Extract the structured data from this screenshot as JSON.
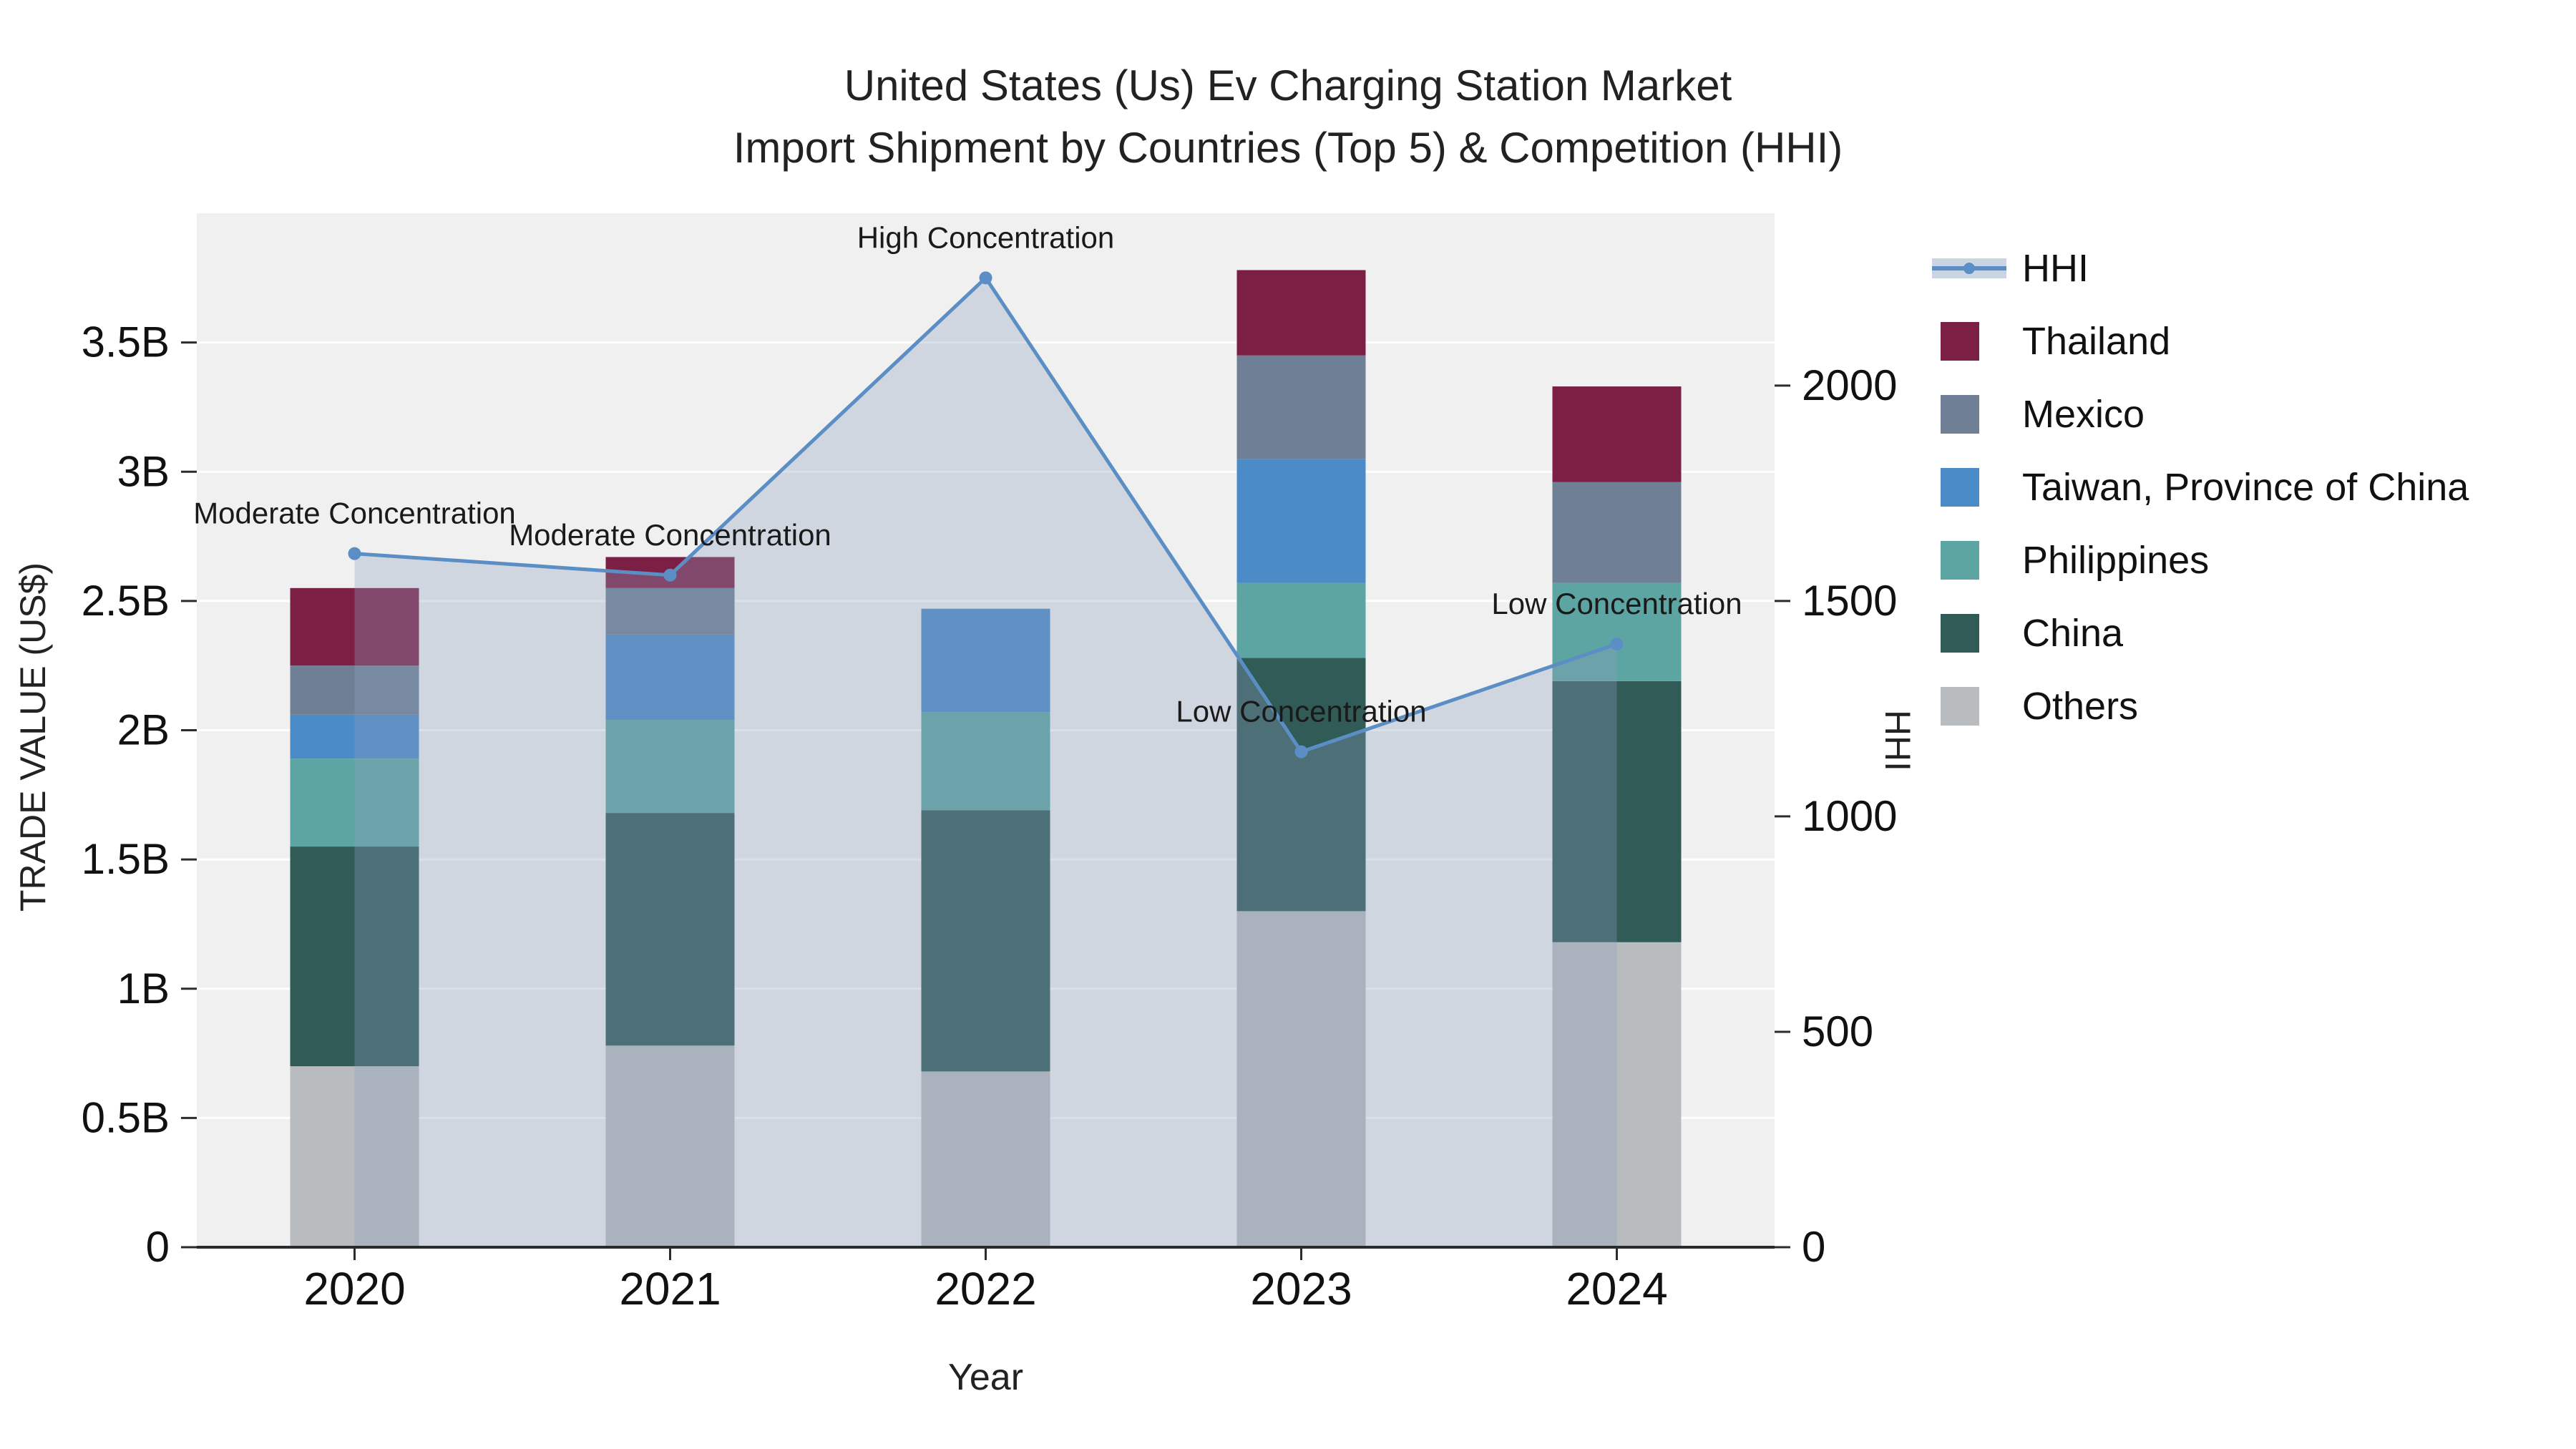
{
  "title": {
    "line1": "United States (Us) Ev Charging Station Market",
    "line2": "Import Shipment by Countries (Top 5) & Competition (HHI)"
  },
  "axis_titles": {
    "left": "TRADE VALUE (US$)",
    "right": "HHI",
    "bottom": "Year"
  },
  "chart_data": {
    "type": "bar",
    "subtype": "stacked-bars-with-line-overlay",
    "categories": [
      "2020",
      "2021",
      "2022",
      "2023",
      "2024"
    ],
    "bar_unit": "billion US$",
    "series": [
      {
        "name": "Others",
        "color": "#b9bcbf",
        "values": [
          0.7,
          0.78,
          0.68,
          1.3,
          1.18
        ]
      },
      {
        "name": "China",
        "color": "#305b57",
        "values": [
          0.85,
          0.9,
          1.01,
          0.98,
          1.01
        ]
      },
      {
        "name": "Philippines",
        "color": "#5da5a3",
        "values": [
          0.34,
          0.36,
          0.38,
          0.29,
          0.38
        ]
      },
      {
        "name": "Taiwan, Province of China",
        "color": "#4b8bc8",
        "values": [
          0.17,
          0.33,
          0.4,
          0.48,
          0.0
        ]
      },
      {
        "name": "Mexico",
        "color": "#6f7f96",
        "values": [
          0.19,
          0.18,
          0.0,
          0.4,
          0.39
        ]
      },
      {
        "name": "Thailand",
        "color": "#7c1f45",
        "values": [
          0.3,
          0.12,
          0.0,
          0.33,
          0.37
        ]
      }
    ],
    "line": {
      "name": "HHI",
      "color": "#5b8ec5",
      "area_fill": "rgba(140,160,190,0.32)",
      "axis": "right",
      "values": [
        1610,
        1560,
        2250,
        1150,
        1400
      ]
    },
    "annotations": [
      "Moderate Concentration",
      "Moderate Concentration",
      "High Concentration",
      "Low Concentration",
      "Low Concentration"
    ],
    "y_left": {
      "min": 0,
      "max": 4.0,
      "ticks": [
        0,
        0.5,
        1,
        1.5,
        2,
        2.5,
        3,
        3.5
      ],
      "tick_labels": [
        "0",
        "0.5B",
        "1B",
        "1.5B",
        "2B",
        "2.5B",
        "3B",
        "3.5B"
      ]
    },
    "y_right": {
      "min": 0,
      "max": 2400,
      "ticks": [
        0,
        500,
        1000,
        1500,
        2000
      ],
      "tick_labels": [
        "0",
        "500",
        "1000",
        "1500",
        "2000"
      ]
    },
    "grid": "horizontal-white",
    "legend_position": "right"
  },
  "legend": {
    "items": [
      {
        "label": "HHI",
        "type": "line",
        "color": "#5b8ec5"
      },
      {
        "label": "Thailand",
        "type": "square",
        "color": "#7c1f45"
      },
      {
        "label": "Mexico",
        "type": "square",
        "color": "#6f7f96"
      },
      {
        "label": "Taiwan, Province of China",
        "type": "square",
        "color": "#4b8bc8"
      },
      {
        "label": "Philippines",
        "type": "square",
        "color": "#5da5a3"
      },
      {
        "label": "China",
        "type": "square",
        "color": "#305b57"
      },
      {
        "label": "Others",
        "type": "square",
        "color": "#b9bcbf"
      }
    ]
  }
}
